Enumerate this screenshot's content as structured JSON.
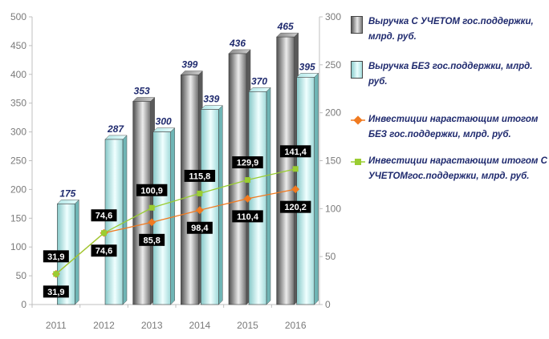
{
  "chart_data": {
    "type": "bar",
    "categories": [
      "2011",
      "2012",
      "2013",
      "2014",
      "2015",
      "2016"
    ],
    "y_left": {
      "min": 0,
      "max": 500,
      "ticks": [
        0,
        50,
        100,
        150,
        200,
        250,
        300,
        350,
        400,
        450,
        500
      ]
    },
    "y_right": {
      "min": 0,
      "max": 300,
      "ticks": [
        0,
        50,
        100,
        150,
        200,
        250,
        300
      ]
    },
    "series": [
      {
        "name": "Выручка С УЧЕТОМ гос.поддержки, млрд. руб.",
        "kind": "bar",
        "axis": "left",
        "values": [
          null,
          null,
          353,
          399,
          436,
          465
        ],
        "labels": [
          "",
          "",
          "353",
          "399",
          "436",
          "465"
        ],
        "color": "#9a9a9a"
      },
      {
        "name": "Выручка БЕЗ гос.поддержки, млрд. руб.",
        "kind": "bar",
        "axis": "left",
        "values": [
          175,
          287,
          300,
          339,
          370,
          395
        ],
        "labels": [
          "175",
          "287",
          "300",
          "339",
          "370",
          "395"
        ],
        "color": "#bfeeee"
      },
      {
        "name": "Инвестиции нарастающим итогом БЕЗ гос.поддержки, млрд. руб.",
        "kind": "line",
        "axis": "right",
        "values": [
          31.9,
          74.6,
          85.8,
          98.4,
          110.4,
          120.2
        ],
        "labels": [
          "31,9",
          "74,6",
          "85,8",
          "98,4",
          "110,4",
          "120,2"
        ],
        "color": "#f07a20"
      },
      {
        "name": "Инвестиции нарастающим итогом С УЧЕТОМгос.поддержки, млрд. руб.",
        "kind": "line",
        "axis": "right",
        "values": [
          31.9,
          74.6,
          100.9,
          115.8,
          129.9,
          141.4
        ],
        "labels": [
          "31,9",
          "74,6",
          "100,9",
          "115,8",
          "129,9",
          "141,4"
        ],
        "color": "#9acd32"
      }
    ],
    "grid": false,
    "legend": "right"
  }
}
